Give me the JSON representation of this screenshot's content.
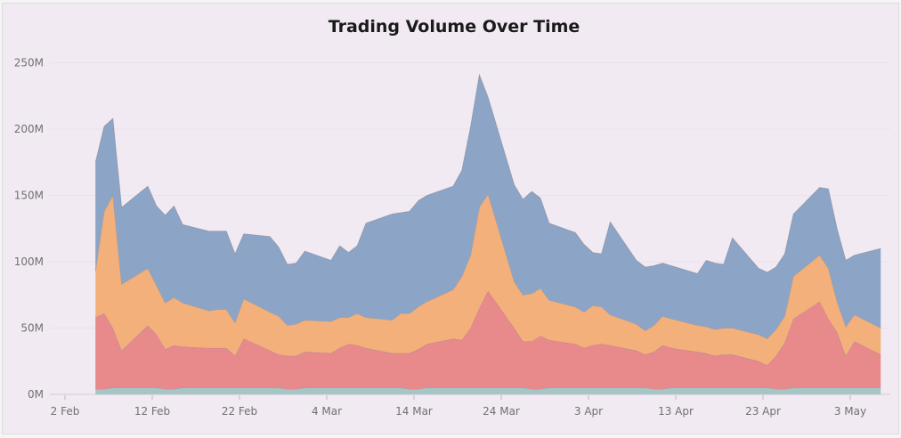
{
  "chart_data": {
    "type": "area",
    "stacked": true,
    "title": "Trading Volume Over Time",
    "xlabel": "",
    "ylabel": "",
    "x_ticks": [
      "2 Feb",
      "12 Feb",
      "22 Feb",
      "4 Mar",
      "14 Mar",
      "24 Mar",
      "3 Apr",
      "13 Apr",
      "23 Apr",
      "3 May"
    ],
    "y_ticks": [
      "0M",
      "50M",
      "100M",
      "150M",
      "200M",
      "250M"
    ],
    "ylim": [
      0,
      260
    ],
    "y_unit": "M",
    "grid": "horizontal",
    "legend": "none",
    "x": [
      "2026-02-06",
      "2026-02-07",
      "2026-02-08",
      "2026-02-09",
      "2026-02-12",
      "2026-02-13",
      "2026-02-14",
      "2026-02-15",
      "2026-02-16",
      "2026-02-19",
      "2026-02-20",
      "2026-02-21",
      "2026-02-22",
      "2026-02-23",
      "2026-02-26",
      "2026-02-27",
      "2026-02-28",
      "2026-03-01",
      "2026-03-02",
      "2026-03-05",
      "2026-03-06",
      "2026-03-07",
      "2026-03-08",
      "2026-03-09",
      "2026-03-12",
      "2026-03-13",
      "2026-03-14",
      "2026-03-15",
      "2026-03-16",
      "2026-03-19",
      "2026-03-20",
      "2026-03-21",
      "2026-03-22",
      "2026-03-23",
      "2026-03-26",
      "2026-03-27",
      "2026-03-28",
      "2026-03-29",
      "2026-03-30",
      "2026-04-02",
      "2026-04-03",
      "2026-04-04",
      "2026-04-05",
      "2026-04-06",
      "2026-04-09",
      "2026-04-10",
      "2026-04-11",
      "2026-04-12",
      "2026-04-13",
      "2026-04-16",
      "2026-04-17",
      "2026-04-18",
      "2026-04-19",
      "2026-04-20",
      "2026-04-23",
      "2026-04-24",
      "2026-04-25",
      "2026-04-26",
      "2026-04-27",
      "2026-04-30",
      "2026-05-01",
      "2026-05-02",
      "2026-05-03",
      "2026-05-04",
      "2026-05-07"
    ],
    "series": [
      {
        "color": "#a5c6c4",
        "values": [
          4,
          4,
          5,
          5,
          5,
          5,
          4,
          4,
          5,
          5,
          5,
          5,
          5,
          5,
          5,
          5,
          4,
          4,
          5,
          5,
          5,
          5,
          5,
          5,
          5,
          5,
          4,
          4,
          5,
          5,
          5,
          5,
          5,
          5,
          5,
          5,
          4,
          4,
          5,
          5,
          5,
          5,
          5,
          5,
          5,
          5,
          4,
          4,
          5,
          5,
          5,
          5,
          5,
          5,
          5,
          5,
          4,
          4,
          5,
          5,
          5,
          5,
          5,
          5,
          5
        ]
      },
      {
        "color": "#e8898c",
        "values": [
          54,
          57,
          45,
          28,
          47,
          40,
          30,
          33,
          31,
          30,
          30,
          30,
          24,
          37,
          28,
          25,
          25,
          25,
          27,
          26,
          30,
          33,
          32,
          30,
          26,
          26,
          27,
          30,
          33,
          37,
          36,
          45,
          60,
          73,
          45,
          35,
          36,
          40,
          36,
          33,
          30,
          32,
          33,
          32,
          28,
          25,
          28,
          33,
          30,
          27,
          26,
          24,
          25,
          25,
          20,
          17,
          25,
          35,
          52,
          65,
          52,
          42,
          24,
          35,
          25
        ]
      },
      {
        "color": "#f3b07a",
        "values": [
          35,
          77,
          100,
          50,
          43,
          37,
          35,
          36,
          33,
          28,
          29,
          29,
          25,
          30,
          29,
          29,
          23,
          24,
          24,
          24,
          23,
          20,
          24,
          23,
          25,
          30,
          30,
          32,
          32,
          37,
          48,
          55,
          76,
          73,
          35,
          35,
          36,
          36,
          30,
          28,
          27,
          30,
          28,
          23,
          20,
          18,
          20,
          22,
          22,
          20,
          20,
          20,
          20,
          20,
          20,
          20,
          20,
          20,
          32,
          35,
          38,
          23,
          22,
          20,
          20
        ]
      },
      {
        "color": "#8ca4c5",
        "values": [
          82,
          64,
          58,
          58,
          62,
          60,
          66,
          69,
          59,
          60,
          59,
          59,
          52,
          49,
          57,
          52,
          46,
          46,
          52,
          46,
          54,
          49,
          51,
          71,
          80,
          76,
          77,
          80,
          80,
          78,
          80,
          97,
          100,
          73,
          73,
          72,
          77,
          68,
          58,
          56,
          51,
          40,
          40,
          70,
          48,
          48,
          45,
          40,
          40,
          39,
          50,
          50,
          48,
          68,
          50,
          50,
          47,
          47,
          47,
          51,
          60,
          55,
          50,
          45,
          60
        ]
      }
    ]
  }
}
